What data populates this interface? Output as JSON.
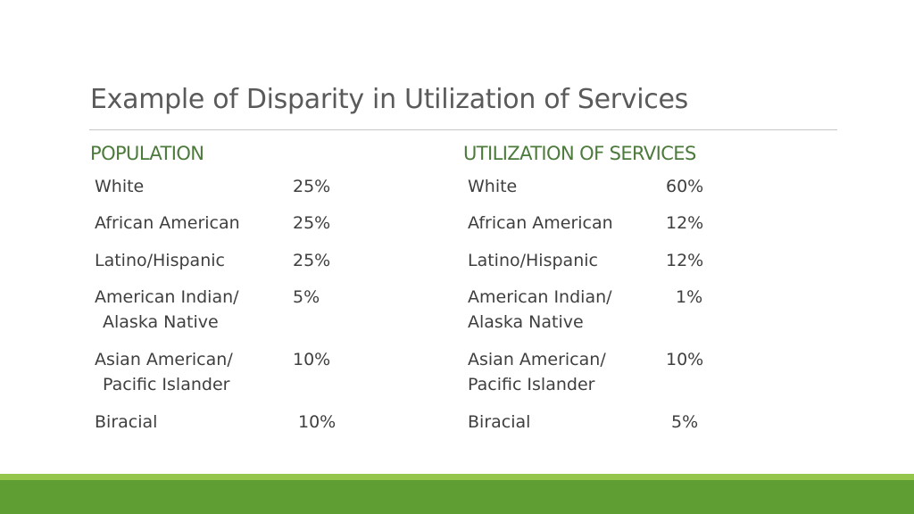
{
  "slide": {
    "title": "Example of Disparity in Utilization of Services"
  },
  "population": {
    "heading": "POPULATION",
    "rows": [
      {
        "label": [
          "White"
        ],
        "value": "25%"
      },
      {
        "label": [
          "African American"
        ],
        "value": "25%"
      },
      {
        "label": [
          "Latino/Hispanic"
        ],
        "value": "25%"
      },
      {
        "label": [
          "American Indian/",
          "Alaska Native"
        ],
        "value": "5%"
      },
      {
        "label": [
          "Asian American/",
          "Pacific Islander"
        ],
        "value": "10%"
      },
      {
        "label": [
          "Biracial"
        ],
        "value": "10%"
      }
    ]
  },
  "utilization": {
    "heading": "UTILIZATION OF SERVICES",
    "rows": [
      {
        "label": [
          "White"
        ],
        "value": "60%"
      },
      {
        "label": [
          "African American"
        ],
        "value": "12%"
      },
      {
        "label": [
          "Latino/Hispanic"
        ],
        "value": "12%"
      },
      {
        "label": [
          "American Indian/",
          "Alaska Native"
        ],
        "value": "1%"
      },
      {
        "label": [
          "Asian American/",
          "Pacific Islander"
        ],
        "value": "10%"
      },
      {
        "label": [
          "Biracial"
        ],
        "value": "5%"
      }
    ]
  },
  "colors": {
    "heading_green": "#4b7a3b",
    "footer_light": "#93c64a",
    "footer_dark": "#5f9e32"
  }
}
